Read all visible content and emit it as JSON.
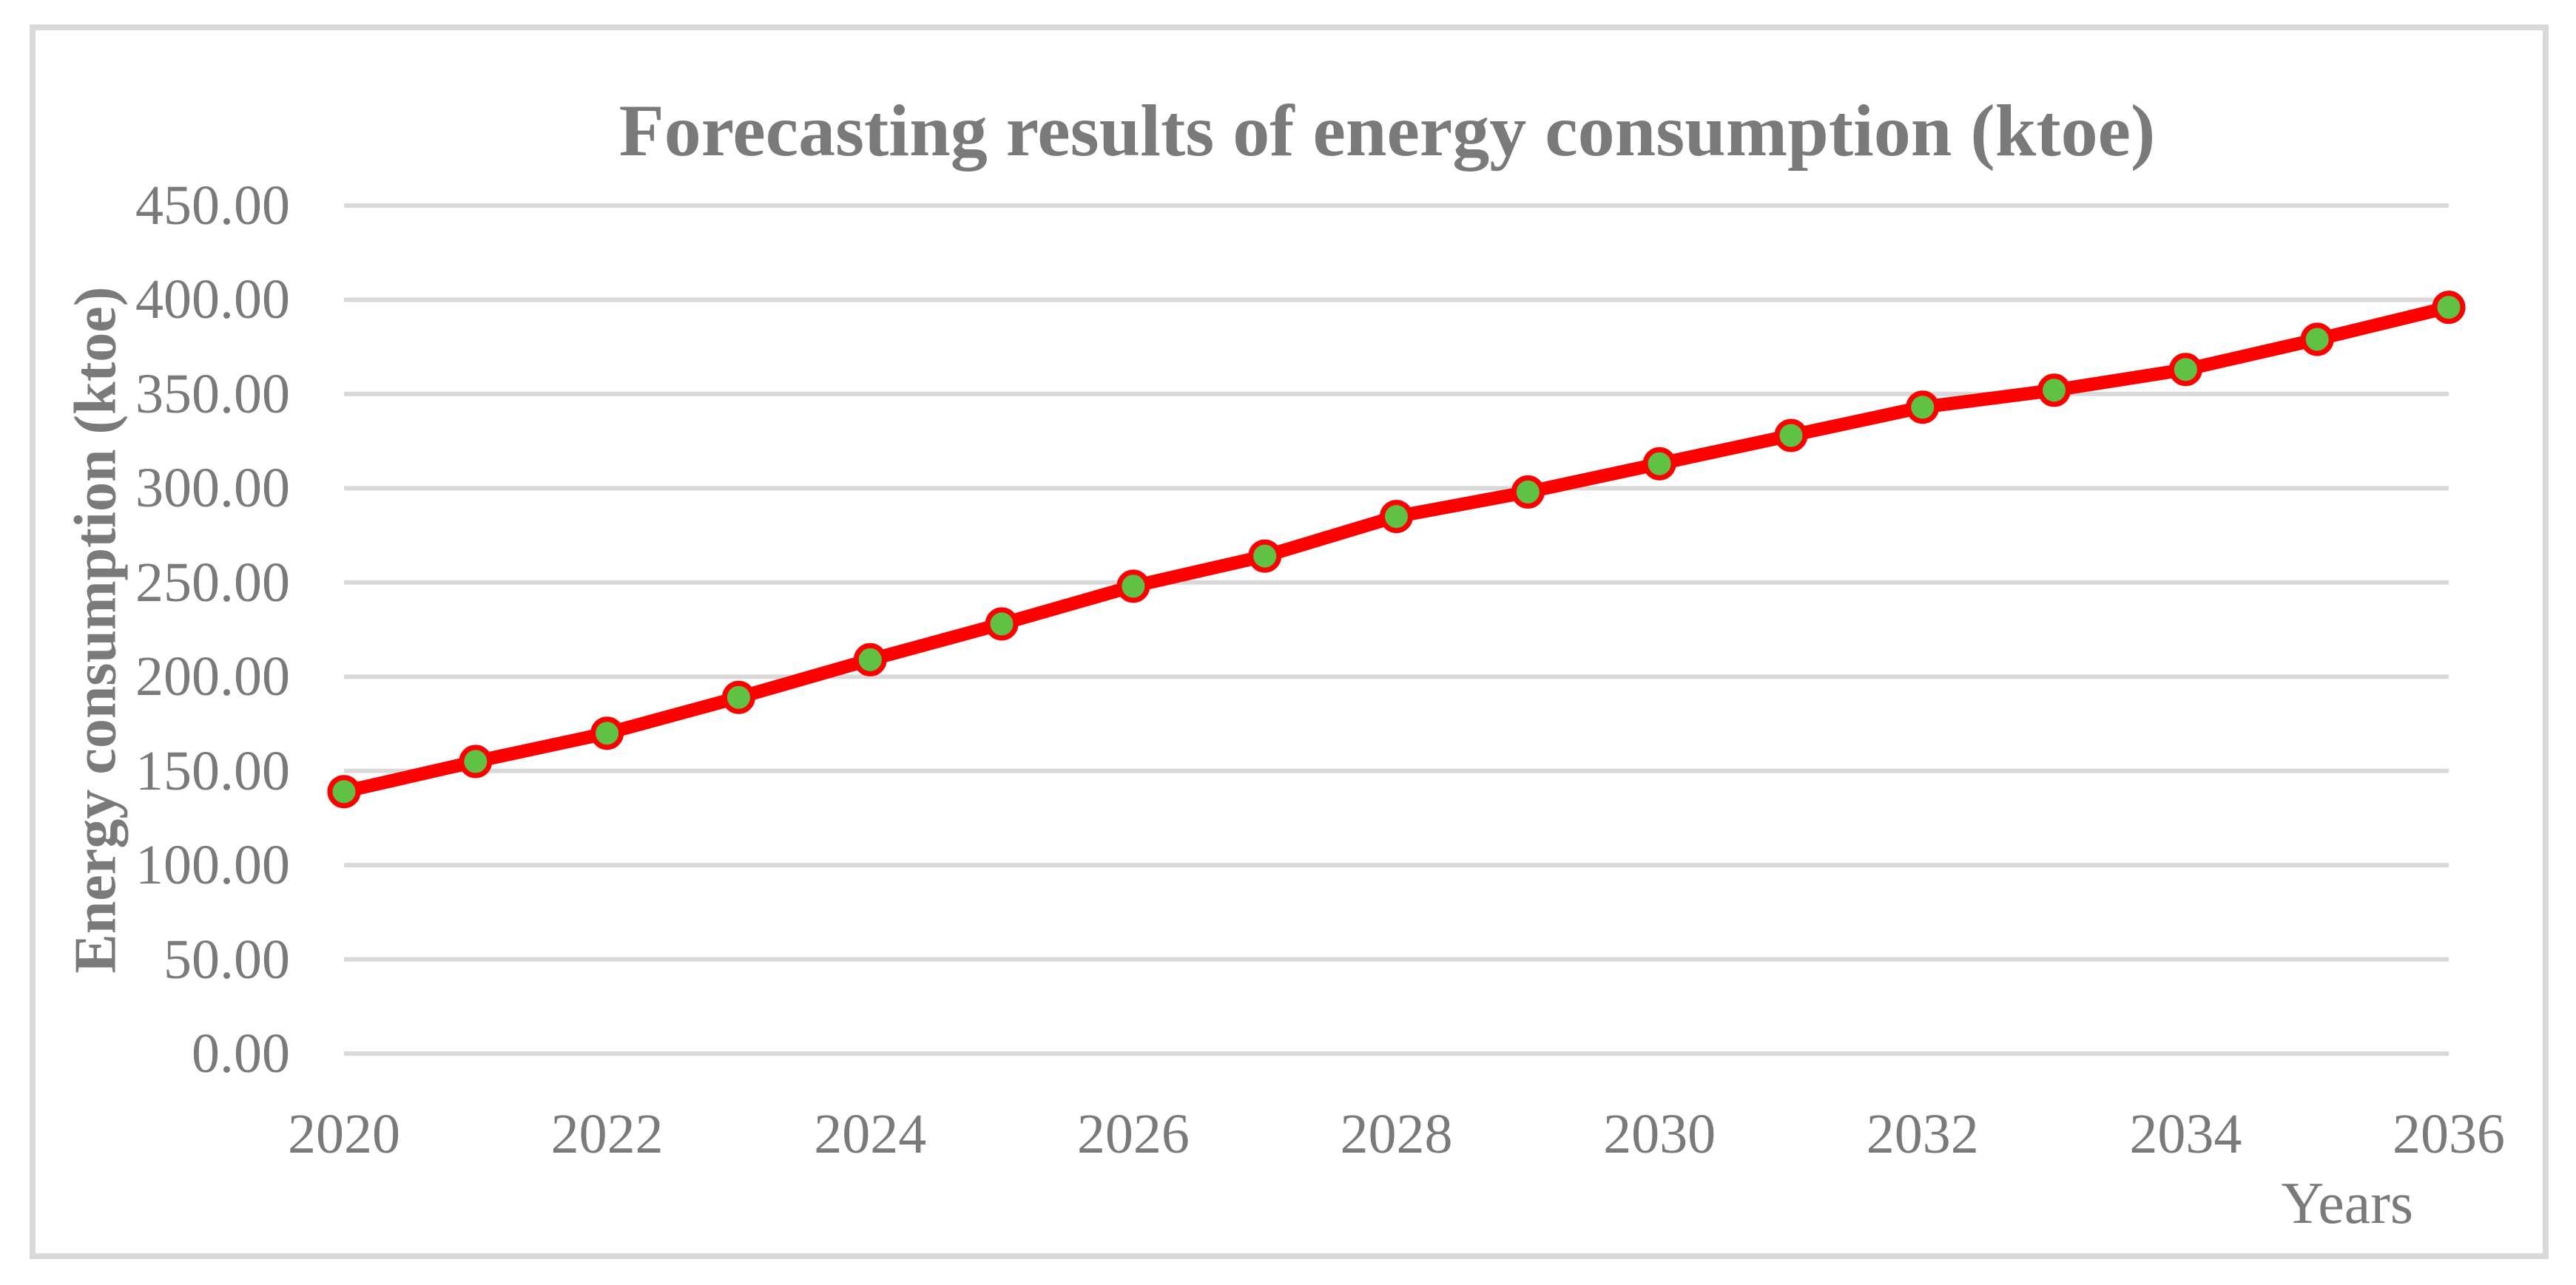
{
  "figure": {
    "title": "Forecasting results of energy consumption (ktoe)",
    "y_axis_title": "Energy consumption (ktoe)",
    "x_axis_title": "Years"
  },
  "chart_data": {
    "type": "line",
    "title": "Forecasting results of energy consumption (ktoe)",
    "xlabel": "Years",
    "ylabel": "Energy consumption (ktoe)",
    "x": [
      2020,
      2021,
      2022,
      2023,
      2024,
      2025,
      2026,
      2027,
      2028,
      2029,
      2030,
      2031,
      2032,
      2033,
      2034,
      2035,
      2036
    ],
    "values": [
      139,
      155,
      170,
      189,
      209,
      228,
      248,
      264,
      285,
      298,
      313,
      328,
      343,
      352,
      363,
      379,
      396
    ],
    "ylim": [
      0,
      450
    ],
    "ytick_step": 50,
    "ytick_labels": [
      "450.00",
      "400.00",
      "350.00",
      "300.00",
      "250.00",
      "200.00",
      "150.00",
      "100.00",
      "50.00",
      "0.00"
    ],
    "xtick_labels": [
      "2020",
      "2022",
      "2024",
      "2026",
      "2028",
      "2030",
      "2032",
      "2034",
      "2036"
    ],
    "grid": "horizontal gridlines only",
    "legend": "none",
    "colors": {
      "line": "#FF0000",
      "marker_fill": "#5FC244",
      "marker_border": "#FF0000",
      "gridlines": "#D9D9D9",
      "frame_border": "#D9D9D9",
      "text": "#7A7A7A"
    }
  }
}
